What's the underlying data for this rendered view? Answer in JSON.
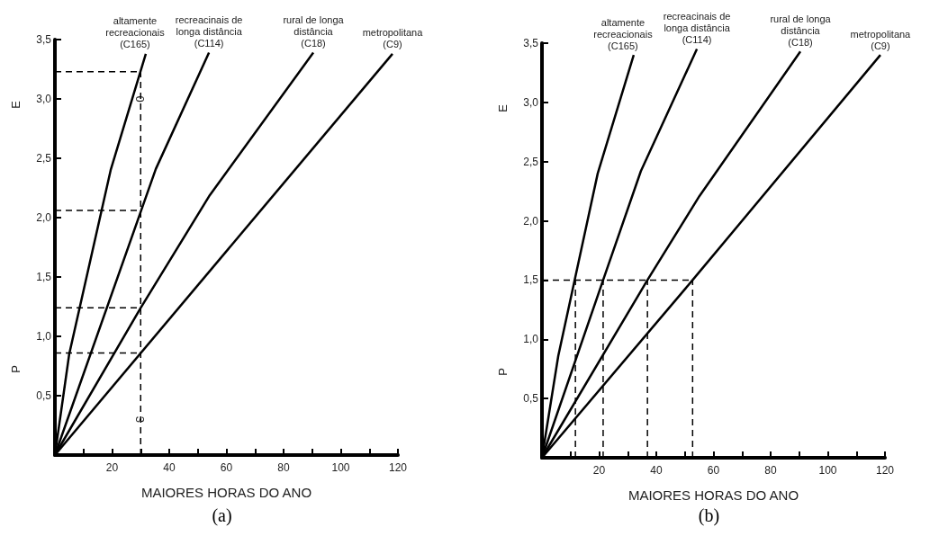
{
  "chart_data": [
    {
      "type": "line",
      "title": "(a)",
      "xlabel": "MAIORES HORAS DO ANO",
      "ylabel": "P",
      "annotations": [
        "E",
        {
          "text": "0",
          "x": 31,
          "y": 3.0
        },
        {
          "text": "3",
          "x": 31,
          "y": 0.3
        }
      ],
      "xlim": [
        0,
        120
      ],
      "ylim": [
        0,
        3.5
      ],
      "xticks": [
        {
          "value": 10,
          "label": null
        },
        20,
        {
          "value": 30,
          "label": null
        },
        40,
        {
          "value": 50,
          "label": null
        },
        60,
        {
          "value": 70,
          "label": null
        },
        80,
        {
          "value": 90,
          "label": null
        },
        100,
        {
          "value": 110,
          "label": null
        },
        120
      ],
      "yticks": [
        {
          "value": 0.5,
          "label": "0,5"
        },
        {
          "value": 1.0,
          "label": "1,0"
        },
        {
          "value": 1.5,
          "label": "1,5"
        },
        {
          "value": 2.0,
          "label": "2,0"
        },
        {
          "value": 2.5,
          "label": "2,5"
        },
        {
          "value": 3.0,
          "label": "3,0"
        },
        {
          "value": 3.5,
          "label": "3,5"
        }
      ],
      "grid": false,
      "legend": false,
      "marker": "none",
      "series": [
        {
          "name": "altamente\nrecreacionais\n(C165)",
          "color": "#000000",
          "line_style": "solid",
          "x": [
            0,
            5,
            19.5,
            31.8
          ],
          "values": [
            0,
            0.85,
            2.4,
            3.38
          ]
        },
        {
          "name": "recreacinais de\nlonga distância\n(C114)",
          "color": "#000000",
          "line_style": "solid",
          "x": [
            0,
            35.3,
            53.9
          ],
          "values": [
            0,
            2.41,
            3.39
          ]
        },
        {
          "name": "rural de longa\ndistância\n(C18)",
          "color": "#000000",
          "line_style": "solid",
          "x": [
            0,
            30,
            54.2,
            90.4
          ],
          "values": [
            0,
            1.24,
            2.19,
            3.39
          ]
        },
        {
          "name": "metropolitana\n(C9)",
          "color": "#000000",
          "line_style": "solid",
          "x": [
            0,
            118.1
          ],
          "values": [
            0,
            3.38
          ]
        },
        {
          "color": "#000000",
          "line_style": "dashed",
          "x": [
            0,
            30
          ],
          "values": [
            3.23,
            3.23
          ]
        },
        {
          "color": "#000000",
          "line_style": "dashed",
          "x": [
            0,
            30
          ],
          "values": [
            2.06,
            2.06
          ]
        },
        {
          "color": "#000000",
          "line_style": "dashed",
          "x": [
            0,
            30
          ],
          "values": [
            1.24,
            1.24
          ]
        },
        {
          "color": "#000000",
          "line_style": "dashed",
          "x": [
            0,
            30
          ],
          "values": [
            0.86,
            0.86
          ]
        },
        {
          "color": "#000000",
          "line_style": "dashed",
          "x": [
            30,
            30
          ],
          "values": [
            0,
            3.23
          ]
        }
      ]
    },
    {
      "type": "line",
      "title": "(b)",
      "xlabel": "MAIORES HORAS DO ANO",
      "ylabel": "P",
      "annotations": [
        "E"
      ],
      "xlim": [
        0,
        120
      ],
      "ylim": [
        0,
        3.5
      ],
      "xticks": [
        {
          "value": 10,
          "label": null
        },
        20,
        {
          "value": 30,
          "label": null
        },
        40,
        {
          "value": 50,
          "label": null
        },
        60,
        {
          "value": 70,
          "label": null
        },
        80,
        {
          "value": 90,
          "label": null
        },
        100,
        {
          "value": 110,
          "label": null
        },
        120
      ],
      "yticks": [
        {
          "value": 0.5,
          "label": "0,5"
        },
        {
          "value": 1.0,
          "label": "1,0"
        },
        {
          "value": 1.5,
          "label": "1,5"
        },
        {
          "value": 2.0,
          "label": "2,0"
        },
        {
          "value": 2.5,
          "label": "2,5"
        },
        {
          "value": 3.0,
          "label": "3,0"
        },
        {
          "value": 3.5,
          "label": "3,5"
        }
      ],
      "grid": false,
      "legend": false,
      "marker": "none",
      "series": [
        {
          "name": "altamente\nrecreacionais\n(C165)",
          "color": "#000000",
          "line_style": "solid",
          "x": [
            0,
            5.7,
            19.5,
            32.1
          ],
          "values": [
            0,
            0.86,
            2.4,
            3.4
          ]
        },
        {
          "name": "recreacinais de\nlonga distância\n(C114)",
          "color": "#000000",
          "line_style": "solid",
          "x": [
            0,
            21.4,
            34.6,
            54.2
          ],
          "values": [
            0,
            1.5,
            2.42,
            3.45
          ]
        },
        {
          "name": "rural de longa\ndistância\n(C18)",
          "color": "#000000",
          "line_style": "solid",
          "x": [
            0,
            36.9,
            55.1,
            90.4
          ],
          "values": [
            0,
            1.5,
            2.21,
            3.43
          ]
        },
        {
          "name": "metropolitana\n(C9)",
          "color": "#000000",
          "line_style": "solid",
          "x": [
            0,
            52.7,
            118.4
          ],
          "values": [
            0,
            1.5,
            3.4
          ]
        },
        {
          "color": "#000000",
          "line_style": "dashed",
          "x": [
            0,
            52.7
          ],
          "values": [
            1.5,
            1.5
          ]
        },
        {
          "color": "#000000",
          "line_style": "dashed",
          "x": [
            11.7,
            11.7
          ],
          "values": [
            0,
            1.5
          ]
        },
        {
          "color": "#000000",
          "line_style": "dashed",
          "x": [
            21.4,
            21.4
          ],
          "values": [
            0,
            1.5
          ]
        },
        {
          "color": "#000000",
          "line_style": "dashed",
          "x": [
            36.9,
            36.9
          ],
          "values": [
            0,
            1.5
          ]
        },
        {
          "color": "#000000",
          "line_style": "dashed",
          "x": [
            52.7,
            52.7
          ],
          "values": [
            0,
            1.5
          ]
        }
      ]
    }
  ]
}
